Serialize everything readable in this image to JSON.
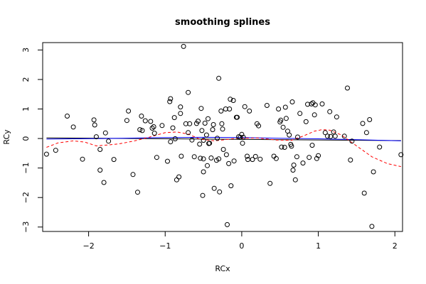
{
  "chart_data": {
    "type": "scatter",
    "title": "smoothing splines",
    "xlabel": "RCx",
    "ylabel": "RCy",
    "xlim": [
      -2.6,
      2.1
    ],
    "ylim": [
      -3.15,
      3.25
    ],
    "xticks": [
      "−2",
      "−1",
      "0",
      "1",
      "2"
    ],
    "xtick_values": [
      -2,
      -1,
      0,
      1,
      2
    ],
    "yticks": [
      "−3",
      "−2",
      "−1",
      "0",
      "1",
      "2",
      "3"
    ],
    "ytick_values": [
      -3,
      -2,
      -1,
      0,
      1,
      2,
      3
    ],
    "grid": false,
    "legend": "none",
    "colors": {
      "points": "#000000",
      "black_line": "#000000",
      "blue_line": "#0000ff",
      "red_dashed": "#ff0000"
    },
    "points": [
      [
        -2.55,
        -0.53
      ],
      [
        -2.43,
        -0.4
      ],
      [
        -2.28,
        0.76
      ],
      [
        -2.2,
        0.39
      ],
      [
        -2.08,
        -0.7
      ],
      [
        -1.93,
        0.63
      ],
      [
        -1.92,
        0.46
      ],
      [
        -1.9,
        0.06
      ],
      [
        -1.85,
        -1.07
      ],
      [
        -1.85,
        -0.37
      ],
      [
        -1.8,
        -1.49
      ],
      [
        -1.78,
        0.19
      ],
      [
        -1.74,
        -0.09
      ],
      [
        -1.67,
        -0.71
      ],
      [
        -1.5,
        0.61
      ],
      [
        -1.48,
        0.93
      ],
      [
        -1.42,
        -1.22
      ],
      [
        -1.36,
        -1.82
      ],
      [
        -1.33,
        0.3
      ],
      [
        -1.31,
        0.76
      ],
      [
        -1.3,
        0.27
      ],
      [
        -1.26,
        0.6
      ],
      [
        -1.19,
        0.58
      ],
      [
        -1.17,
        0.35
      ],
      [
        -1.15,
        0.4
      ],
      [
        -1.14,
        0.18
      ],
      [
        -1.11,
        -0.64
      ],
      [
        -1.04,
        0.44
      ],
      [
        -0.97,
        -0.77
      ],
      [
        -0.94,
        1.25
      ],
      [
        -0.93,
        1.35
      ],
      [
        -0.93,
        -0.11
      ],
      [
        -0.9,
        0.36
      ],
      [
        -0.88,
        0.71
      ],
      [
        -0.87,
        -0.01
      ],
      [
        -0.85,
        -1.4
      ],
      [
        -0.82,
        -1.3
      ],
      [
        -0.8,
        1.07
      ],
      [
        -0.8,
        0.85
      ],
      [
        -0.79,
        -0.6
      ],
      [
        -0.76,
        3.12
      ],
      [
        -0.73,
        0.5
      ],
      [
        -0.7,
        1.56
      ],
      [
        -0.7,
        0.2
      ],
      [
        -0.68,
        0.5
      ],
      [
        -0.65,
        -0.05
      ],
      [
        -0.62,
        -0.62
      ],
      [
        -0.59,
        0.51
      ],
      [
        -0.57,
        0.59
      ],
      [
        -0.55,
        -0.19
      ],
      [
        -0.54,
        -0.67
      ],
      [
        -0.53,
        1.02
      ],
      [
        -0.52,
        0.27
      ],
      [
        -0.51,
        -1.93
      ],
      [
        -0.5,
        -0.06
      ],
      [
        -0.5,
        -0.69
      ],
      [
        -0.5,
        -1.13
      ],
      [
        -0.48,
        0.52
      ],
      [
        -0.46,
        0.12
      ],
      [
        -0.45,
        -0.92
      ],
      [
        -0.44,
        0.67
      ],
      [
        -0.43,
        -0.17
      ],
      [
        -0.42,
        -0.16
      ],
      [
        -0.4,
        -0.66
      ],
      [
        -0.38,
        0.3
      ],
      [
        -0.37,
        0.47
      ],
      [
        -0.36,
        -1.69
      ],
      [
        -0.33,
        -0.74
      ],
      [
        -0.32,
        0.01
      ],
      [
        -0.3,
        -0.69
      ],
      [
        -0.3,
        2.04
      ],
      [
        -0.29,
        -1.81
      ],
      [
        -0.27,
        0.93
      ],
      [
        -0.26,
        0.5
      ],
      [
        -0.25,
        0.32
      ],
      [
        -0.24,
        -0.37
      ],
      [
        -0.21,
        1.0
      ],
      [
        -0.2,
        -0.55
      ],
      [
        -0.19,
        -2.92
      ],
      [
        -0.17,
        -0.85
      ],
      [
        -0.16,
        1.0
      ],
      [
        -0.15,
        1.33
      ],
      [
        -0.14,
        -1.6
      ],
      [
        -0.11,
        1.29
      ],
      [
        -0.1,
        -0.76
      ],
      [
        -0.07,
        0.72
      ],
      [
        -0.06,
        0.72
      ],
      [
        -0.04,
        0.06
      ],
      [
        -0.02,
        0.04
      ],
      [
        0.0,
        0.14
      ],
      [
        0.01,
        -0.16
      ],
      [
        0.02,
        0.04
      ],
      [
        0.04,
        1.08
      ],
      [
        0.07,
        -0.6
      ],
      [
        0.08,
        -0.71
      ],
      [
        0.1,
        0.93
      ],
      [
        0.14,
        -0.71
      ],
      [
        0.18,
        -0.61
      ],
      [
        0.2,
        0.5
      ],
      [
        0.22,
        0.43
      ],
      [
        0.24,
        -0.7
      ],
      [
        0.33,
        1.12
      ],
      [
        0.37,
        -1.52
      ],
      [
        0.42,
        -0.6
      ],
      [
        0.45,
        -0.68
      ],
      [
        0.48,
        1.0
      ],
      [
        0.5,
        0.56
      ],
      [
        0.51,
        0.62
      ],
      [
        0.52,
        -0.29
      ],
      [
        0.54,
        0.38
      ],
      [
        0.56,
        -0.3
      ],
      [
        0.57,
        1.06
      ],
      [
        0.58,
        0.68
      ],
      [
        0.6,
        0.25
      ],
      [
        0.62,
        0.12
      ],
      [
        0.64,
        -0.2
      ],
      [
        0.65,
        -0.26
      ],
      [
        0.66,
        1.24
      ],
      [
        0.67,
        -1.07
      ],
      [
        0.68,
        -0.9
      ],
      [
        0.7,
        -1.4
      ],
      [
        0.72,
        -0.62
      ],
      [
        0.73,
        0.05
      ],
      [
        0.76,
        0.85
      ],
      [
        0.8,
        -0.83
      ],
      [
        0.84,
        0.57
      ],
      [
        0.86,
        1.16
      ],
      [
        0.88,
        -0.64
      ],
      [
        0.91,
        1.17
      ],
      [
        0.92,
        -0.23
      ],
      [
        0.93,
        1.21
      ],
      [
        0.95,
        0.8
      ],
      [
        0.96,
        1.14
      ],
      [
        0.98,
        -0.68
      ],
      [
        1.0,
        -0.58
      ],
      [
        1.05,
        1.17
      ],
      [
        1.09,
        0.2
      ],
      [
        1.12,
        0.08
      ],
      [
        1.15,
        0.91
      ],
      [
        1.16,
        0.07
      ],
      [
        1.2,
        0.22
      ],
      [
        1.22,
        0.08
      ],
      [
        1.24,
        0.73
      ],
      [
        1.34,
        0.08
      ],
      [
        1.38,
        1.71
      ],
      [
        1.44,
        -0.09
      ],
      [
        1.42,
        -0.73
      ],
      [
        1.58,
        0.51
      ],
      [
        1.6,
        -1.85
      ],
      [
        1.63,
        0.2
      ],
      [
        1.67,
        0.64
      ],
      [
        1.7,
        -2.98
      ],
      [
        1.72,
        -1.13
      ],
      [
        1.8,
        -0.29
      ],
      [
        2.08,
        -0.55
      ]
    ],
    "series": [
      {
        "style": "solid",
        "color": "#000000",
        "x": [
          -2.55,
          2.08
        ],
        "y": [
          0.02,
          -0.07
        ]
      },
      {
        "style": "solid",
        "color": "#0000ff",
        "x": [
          -2.55,
          -1.8,
          -1.0,
          -0.5,
          0.0,
          0.5,
          1.0,
          1.5,
          2.08
        ],
        "y": [
          -0.02,
          0.0,
          0.03,
          0.04,
          0.03,
          0.01,
          -0.01,
          -0.04,
          -0.08
        ]
      },
      {
        "style": "dashed",
        "color": "#ff0000",
        "x": [
          -2.55,
          -2.4,
          -2.2,
          -2.05,
          -1.9,
          -1.75,
          -1.6,
          -1.4,
          -1.2,
          -1.0,
          -0.85,
          -0.7,
          -0.55,
          -0.35,
          -0.1,
          0.2,
          0.45,
          0.65,
          0.8,
          0.95,
          1.05,
          1.15,
          1.3,
          1.5,
          1.7,
          1.9,
          2.08
        ],
        "y": [
          -0.3,
          -0.15,
          -0.08,
          -0.12,
          -0.25,
          -0.22,
          -0.18,
          -0.08,
          0.05,
          0.2,
          0.22,
          0.15,
          -0.02,
          -0.08,
          0.0,
          0.02,
          -0.05,
          -0.06,
          0.08,
          0.25,
          0.3,
          0.28,
          0.12,
          -0.25,
          -0.62,
          -0.85,
          -0.95
        ]
      }
    ]
  }
}
